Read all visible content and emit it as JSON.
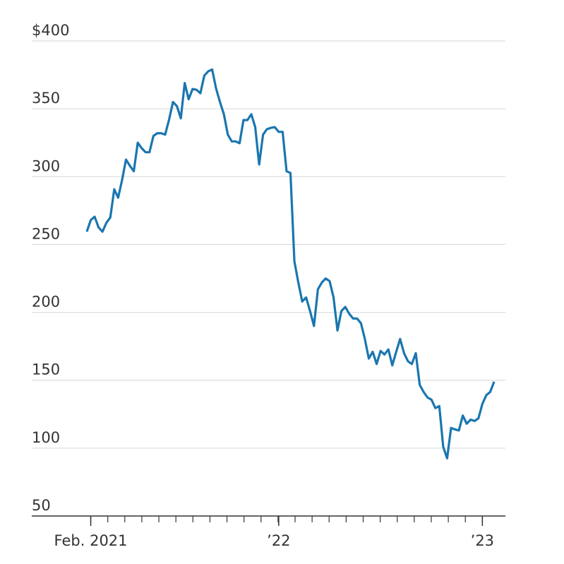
{
  "chart_data": {
    "type": "line",
    "categories": [
      null,
      "Feb. 2021",
      null,
      null,
      null,
      null,
      null,
      null,
      null,
      null,
      null,
      null,
      null,
      null,
      null,
      null,
      null,
      null,
      null,
      null,
      null,
      null,
      null,
      null,
      null,
      null,
      null,
      null,
      null,
      null,
      null,
      null,
      null,
      null,
      null,
      null,
      null,
      null,
      null,
      null,
      null,
      null,
      null,
      null,
      null,
      null,
      null,
      null,
      null,
      "’22",
      null,
      null,
      null,
      null,
      null,
      null,
      null,
      null,
      null,
      null,
      null,
      null,
      null,
      null,
      null,
      null,
      null,
      null,
      null,
      null,
      null,
      null,
      null,
      null,
      null,
      null,
      null,
      null,
      null,
      null,
      null,
      null,
      null,
      null,
      null,
      null,
      null,
      null,
      null,
      null,
      null,
      null,
      null,
      null,
      null,
      null,
      null,
      null,
      null,
      null,
      null,
      "’23",
      null,
      null,
      null
    ],
    "values": [
      259.5,
      268,
      270.5,
      262.6,
      259.5,
      266,
      270,
      290.7,
      284.5,
      297.5,
      312.6,
      308,
      304,
      325,
      321,
      318,
      318,
      330,
      332,
      332,
      331,
      342,
      355,
      352,
      343,
      369,
      357,
      364.6,
      364,
      361.5,
      374.5,
      377.6,
      379,
      365,
      355,
      346,
      331,
      326,
      326,
      324.6,
      341.7,
      341.7,
      346,
      336.5,
      309,
      331,
      335,
      336,
      336.5,
      333,
      333,
      304,
      302.7,
      237.7,
      222,
      208,
      211,
      201,
      190,
      217,
      222,
      225,
      223,
      211,
      186.7,
      201,
      204,
      199,
      195.5,
      195.5,
      192,
      180.4,
      166,
      171,
      162,
      171.6,
      169,
      172.7,
      161,
      171,
      180.4,
      170,
      164,
      162,
      170,
      146.6,
      141.4,
      137.3,
      135.7,
      129.5,
      131,
      101,
      92.5,
      114.9,
      113.8,
      113,
      124,
      118,
      121,
      120,
      122,
      132.6,
      139,
      141.4,
      149
    ],
    "color": "#1a76b0",
    "ylim": [
      50,
      400
    ],
    "yticks": [
      50,
      100,
      150,
      200,
      250,
      300,
      350,
      {
        "value": 400,
        "label": "$400"
      }
    ],
    "grid": true
  }
}
